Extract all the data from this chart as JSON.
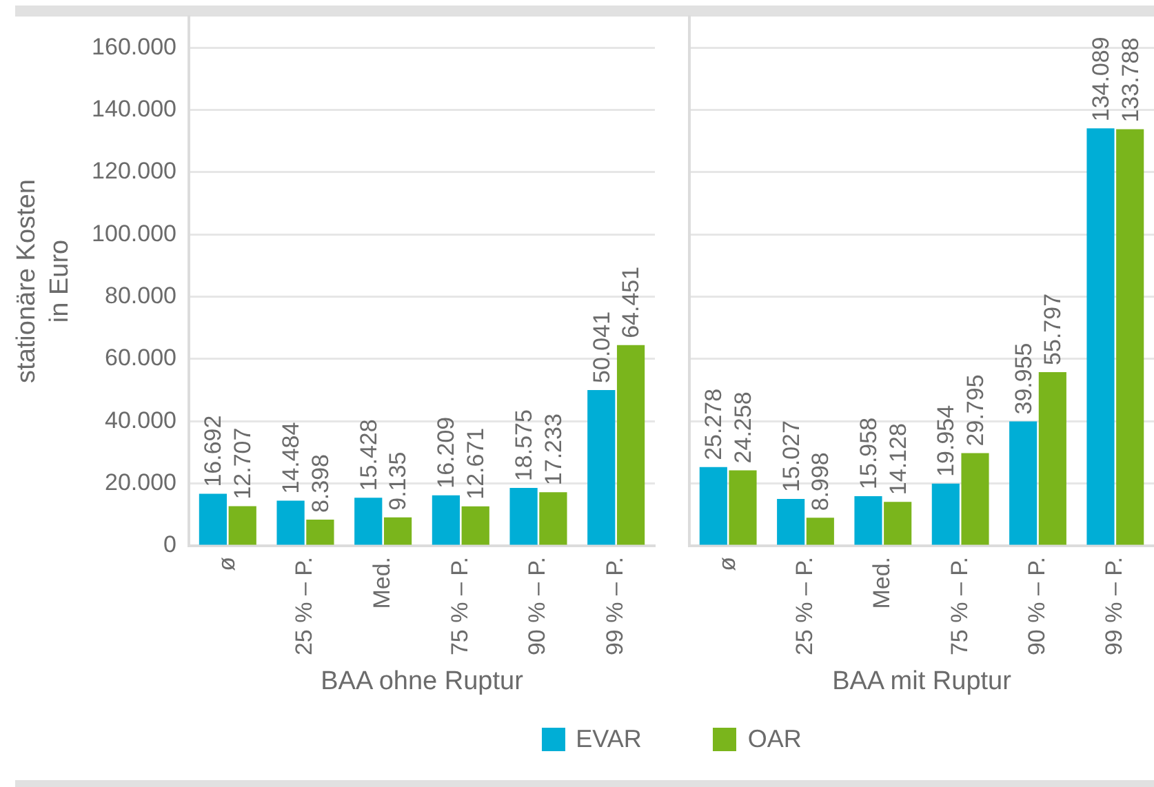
{
  "chart_data": [
    {
      "type": "bar",
      "xlabel": "BAA ohne Ruptur",
      "ylabel": "stationäre Kosten\nin Euro",
      "categories": [
        "ø",
        "25 % – P.",
        "Med.",
        "75 % – P.",
        "90 % – P.",
        "99 % – P."
      ],
      "series": [
        {
          "name": "EVAR",
          "color": "#00aed6",
          "values": [
            16692,
            14484,
            15428,
            16209,
            18575,
            50041
          ],
          "value_labels": [
            "16.692",
            "14.484",
            "15.428",
            "16.209",
            "18.575",
            "50.041"
          ]
        },
        {
          "name": "OAR",
          "color": "#7ab51c",
          "values": [
            12707,
            8398,
            9135,
            12671,
            17233,
            64451
          ],
          "value_labels": [
            "12.707",
            "8.398",
            "9.135",
            "12.671",
            "17.233",
            "64.451"
          ]
        }
      ],
      "ylim": [
        0,
        170000
      ],
      "yticks": [
        0,
        {
          "value": 20000,
          "label": "20.000"
        },
        {
          "value": 40000,
          "label": "40.000"
        },
        {
          "value": 60000,
          "label": "60.000"
        },
        {
          "value": 80000,
          "label": "80.000"
        },
        {
          "value": 100000,
          "label": "100.000"
        },
        {
          "value": 120000,
          "label": "120.000"
        },
        {
          "value": 140000,
          "label": "140.000"
        },
        {
          "value": 160000,
          "label": "160.000"
        }
      ],
      "grid": "y",
      "legend": "bottom"
    },
    {
      "type": "bar",
      "xlabel": "BAA mit Ruptur",
      "categories": [
        "ø",
        "25 % – P.",
        "Med.",
        "75 % – P.",
        "90 % – P.",
        "99 % – P."
      ],
      "series": [
        {
          "color": "#00aed6",
          "values": [
            25278,
            15027,
            15958,
            19954,
            39955,
            134089
          ],
          "value_labels": [
            "25.278",
            "15.027",
            "15.958",
            "19.954",
            "39.955",
            "134.089"
          ]
        },
        {
          "color": "#7ab51c",
          "values": [
            24258,
            8998,
            14128,
            29795,
            55797,
            133788
          ],
          "value_labels": [
            "24.258",
            "8.998",
            "14.128",
            "29.795",
            "55.797",
            "133.788"
          ]
        }
      ],
      "ylim": [
        0,
        170000
      ],
      "yticks": [
        0,
        20000,
        40000,
        60000,
        80000,
        100000,
        120000,
        140000,
        160000
      ],
      "grid": "y",
      "tick_labels": "x"
    }
  ]
}
